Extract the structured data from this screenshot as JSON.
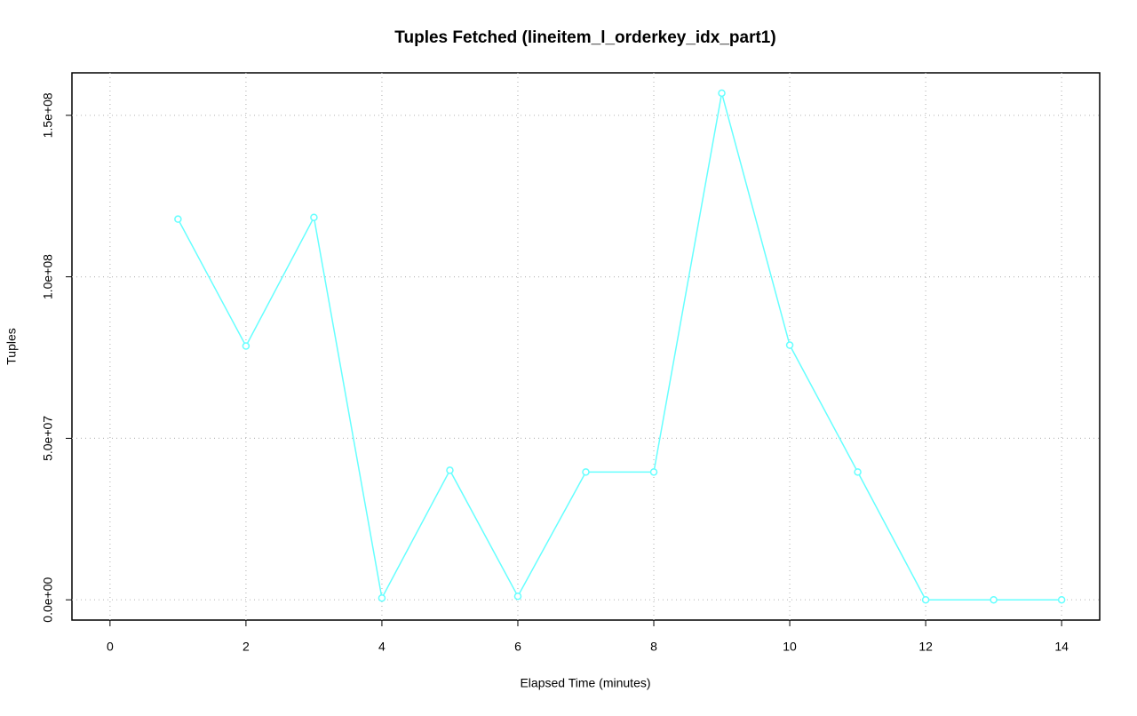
{
  "chart_data": {
    "type": "line",
    "title": "Tuples Fetched (lineitem_l_orderkey_idx_part1)",
    "x_label": "Elapsed Time (minutes)",
    "y_label": "Tuples",
    "x": [
      1,
      2,
      3,
      4,
      5,
      6,
      7,
      8,
      9,
      10,
      11,
      12,
      13,
      14
    ],
    "series": [
      {
        "color": "#66ffff",
        "values": [
          117860000,
          78570000,
          118400000,
          550000,
          40100000,
          1100000,
          39560000,
          39560000,
          156870000,
          78850000,
          39560000,
          0,
          0,
          0
        ]
      }
    ],
    "xlim": [
      -0.56,
      14.56
    ],
    "ylim": [
      -6270000,
      163150000
    ],
    "xticks": [
      0,
      2,
      4,
      6,
      8,
      10,
      12,
      14
    ],
    "yticks": [
      {
        "value": 0,
        "label": "0.0e+00"
      },
      {
        "value": 50000000,
        "label": "5.0e+07"
      },
      {
        "value": 100000000,
        "label": "1.0e+08"
      },
      {
        "value": 150000000,
        "label": "1.5e+08"
      }
    ],
    "grid": true
  }
}
